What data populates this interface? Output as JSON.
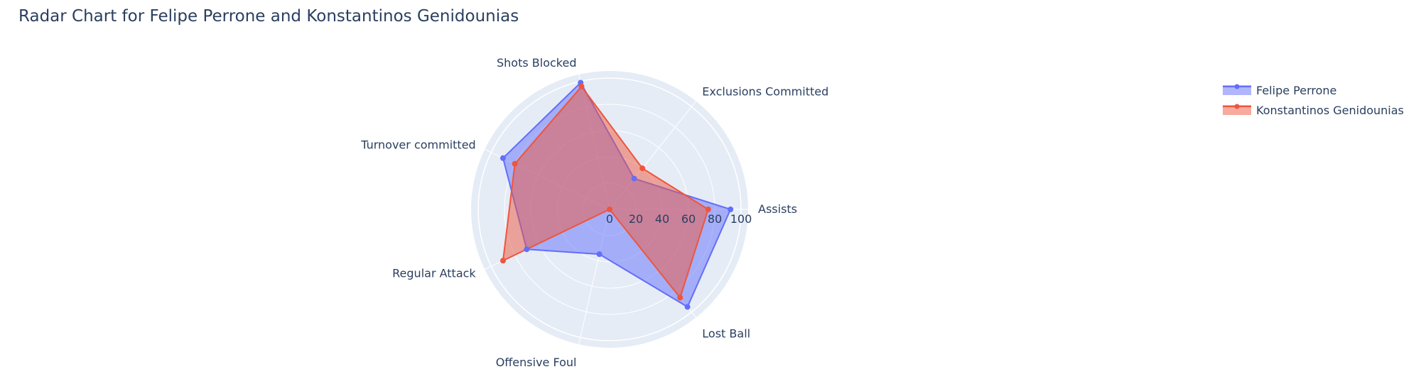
{
  "chart_data": {
    "type": "radar",
    "title": "Radar Chart for Felipe Perrone and Konstantinos Genidounias",
    "categories": [
      "Assists",
      "Exclusions Committed",
      "Shots Blocked",
      "Turnover committed",
      "Regular Attack",
      "Offensive Foul",
      "Lost Ball"
    ],
    "radial_range": [
      0,
      100
    ],
    "radial_ticks": [
      "0",
      "20",
      "40",
      "60",
      "80",
      "100"
    ],
    "grid": true,
    "legend_position": "top-right",
    "series": [
      {
        "name": "Felipe Perrone",
        "values": [
          92,
          30,
          99,
          90,
          70,
          35,
          95
        ],
        "color": "#636efa"
      },
      {
        "name": "Konstantinos Genidounias",
        "values": [
          75,
          40,
          96,
          80,
          90,
          0,
          86
        ],
        "color": "#ef553b"
      }
    ]
  }
}
